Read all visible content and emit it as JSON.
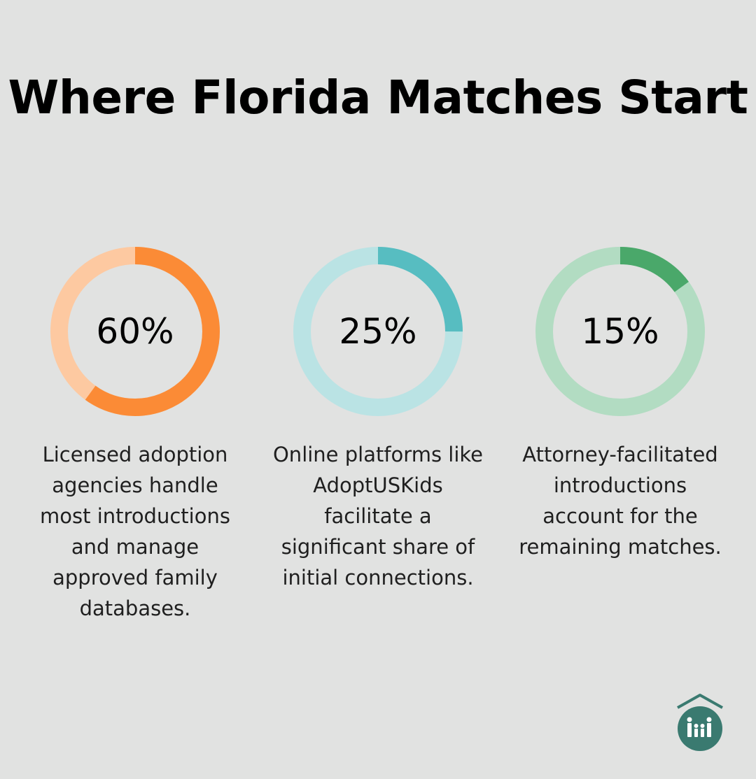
{
  "title": "Where Florida Matches Start",
  "chart_data": {
    "type": "pie",
    "series": [
      {
        "value": 60,
        "label": "60%",
        "description": "Licensed adoption agencies handle most introductions and manage approved family databases.",
        "color": "#fb8b36",
        "track_color": "#fdc9a1"
      },
      {
        "value": 25,
        "label": "25%",
        "description": "Online platforms like AdoptUSKids facilitate a significant share of initial connections.",
        "color": "#57bdc1",
        "track_color": "#bae3e4"
      },
      {
        "value": 15,
        "label": "15%",
        "description": "Attorney-facilitated introductions account for the remaining matches.",
        "color": "#4aa86a",
        "track_color": "#b2dcc2"
      }
    ]
  },
  "logo": {
    "icon": "house-family-icon",
    "color": "#3a7a70"
  }
}
